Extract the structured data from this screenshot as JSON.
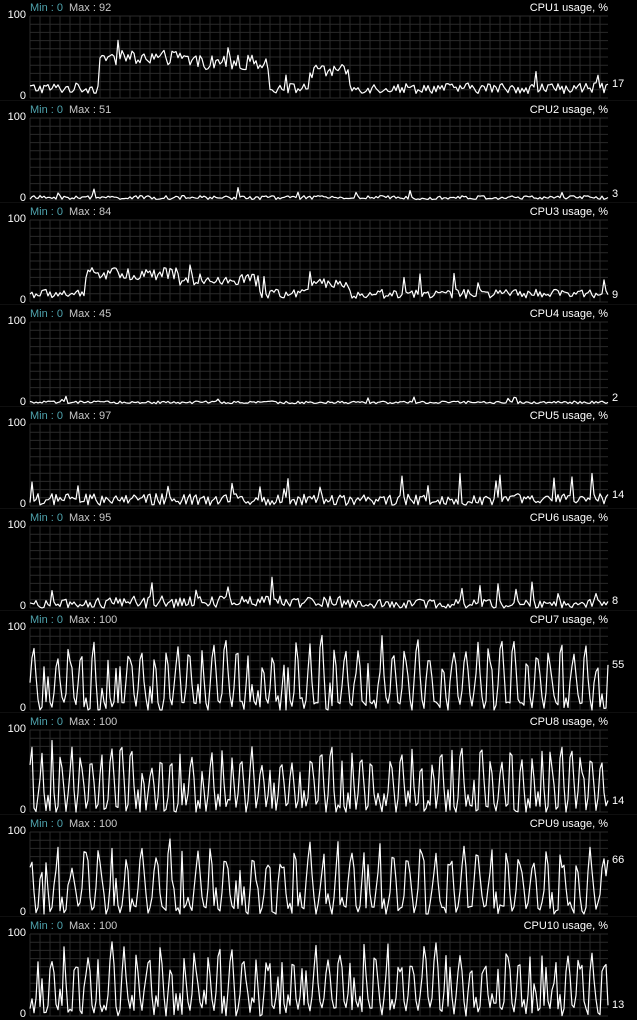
{
  "window": {
    "axis_max_label": "100",
    "axis_min_label": "0"
  },
  "colors": {
    "background": "#000000",
    "grid": "#2a2a2a",
    "trace": "#ffffff",
    "min_label": "#4fa3ad",
    "max_label": "#c8c8c8"
  },
  "graphs": [
    {
      "title": "CPU1 usage, %",
      "min_label": "Min : 0",
      "max_label": "Max : 92",
      "current": "17",
      "min": 0,
      "max": 92,
      "current_value": 17
    },
    {
      "title": "CPU2 usage, %",
      "min_label": "Min : 0",
      "max_label": "Max : 51",
      "current": "3",
      "min": 0,
      "max": 51,
      "current_value": 3
    },
    {
      "title": "CPU3 usage, %",
      "min_label": "Min : 0",
      "max_label": "Max : 84",
      "current": "9",
      "min": 0,
      "max": 84,
      "current_value": 9
    },
    {
      "title": "CPU4 usage, %",
      "min_label": "Min : 0",
      "max_label": "Max : 45",
      "current": "2",
      "min": 0,
      "max": 45,
      "current_value": 2
    },
    {
      "title": "CPU5 usage, %",
      "min_label": "Min : 0",
      "max_label": "Max : 97",
      "current": "14",
      "min": 0,
      "max": 97,
      "current_value": 14
    },
    {
      "title": "CPU6 usage, %",
      "min_label": "Min : 0",
      "max_label": "Max : 95",
      "current": "8",
      "min": 0,
      "max": 95,
      "current_value": 8
    },
    {
      "title": "CPU7 usage, %",
      "min_label": "Min : 0",
      "max_label": "Max : 100",
      "current": "55",
      "min": 0,
      "max": 100,
      "current_value": 55
    },
    {
      "title": "CPU8 usage, %",
      "min_label": "Min : 0",
      "max_label": "Max : 100",
      "current": "14",
      "min": 0,
      "max": 100,
      "current_value": 14
    },
    {
      "title": "CPU9 usage, %",
      "min_label": "Min : 0",
      "max_label": "Max : 100",
      "current": "66",
      "min": 0,
      "max": 100,
      "current_value": 66
    },
    {
      "title": "CPU10 usage, %",
      "min_label": "Min : 0",
      "max_label": "Max : 100",
      "current": "13",
      "min": 0,
      "max": 100,
      "current_value": 13
    }
  ]
}
